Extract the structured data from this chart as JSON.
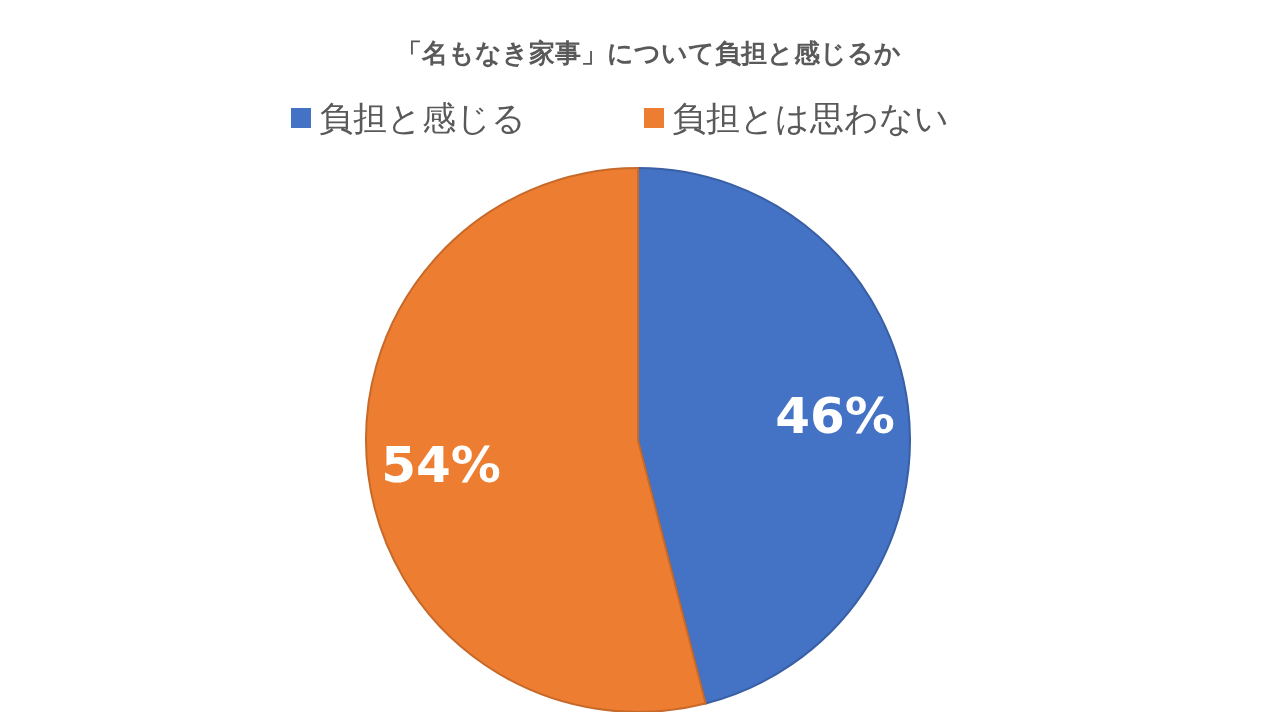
{
  "chart_data": {
    "type": "pie",
    "title": "「名もなき家事」について負担と感じるか",
    "categories": [
      "負担と感じる",
      "負担とは思わない"
    ],
    "values": [
      46,
      54
    ],
    "colors": [
      "#4472c4",
      "#ed7d31"
    ],
    "value_labels": [
      "46%",
      "54%"
    ],
    "legend": "top"
  }
}
